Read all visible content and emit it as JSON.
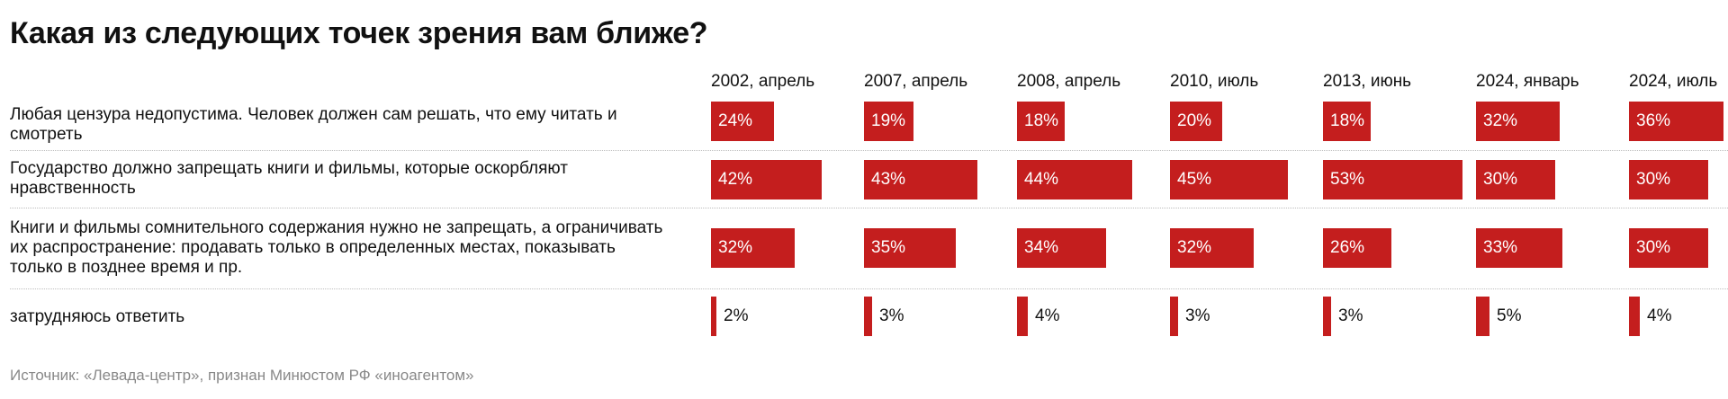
{
  "colors": {
    "bar": "#c41e1e",
    "label_inside": "#ffffff",
    "label_outside": "#111111",
    "source": "#888888"
  },
  "chart_data": {
    "type": "bar",
    "title": "Какая из следующих точек зрения вам ближе?",
    "categories": [
      "2002, апрель",
      "2007, апрель",
      "2008, апрель",
      "2010, июль",
      "2013, июнь",
      "2024, январь",
      "2024, июль"
    ],
    "series": [
      {
        "name": "Любая цензура недопустима. Человек должен сам решать, что ему читать и смотреть",
        "values": [
          24,
          19,
          18,
          20,
          18,
          32,
          36
        ]
      },
      {
        "name": "Государство должно запрещать книги и фильмы, которые оскорбляют нравственность",
        "values": [
          42,
          43,
          44,
          45,
          53,
          30,
          30
        ]
      },
      {
        "name": "Книги и фильмы сомнительного содержания нужно не запрещать, а ограничивать их распространение: продавать только в определенных местах, показывать только в позднее время и пр.",
        "values": [
          32,
          35,
          34,
          32,
          26,
          33,
          30
        ]
      },
      {
        "name": "затрудняюсь ответить",
        "values": [
          2,
          3,
          4,
          3,
          3,
          5,
          4
        ]
      }
    ],
    "value_suffix": "%",
    "xlabel": "",
    "ylabel": ""
  },
  "row_label_lines": [
    [
      "Любая цензура недопустима. Человек должен сам решать, что ему читать и",
      "смотреть"
    ],
    [
      "Государство должно запрещать книги и фильмы, которые оскорбляют",
      "нравственность"
    ],
    [
      "Книги и фильмы сомнительного содержания нужно не запрещать, а ограничивать",
      "их распространение: продавать только в определенных местах, показывать",
      "только в позднее время и пр."
    ],
    [
      "затрудняюсь ответить"
    ]
  ],
  "source": "Источник: «Левада-центр», признан Минюстом РФ «иноагентом»"
}
